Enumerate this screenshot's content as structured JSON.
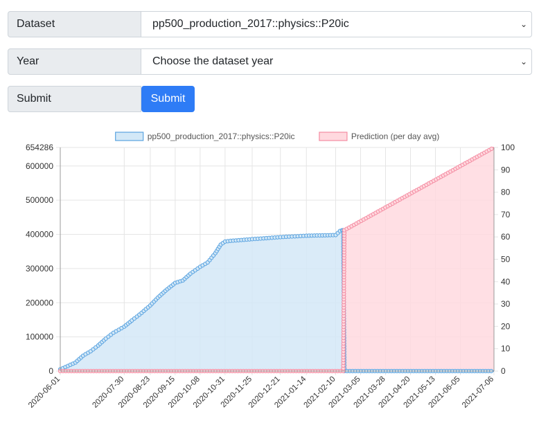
{
  "form": {
    "dataset_label": "Dataset",
    "dataset_value": "pp500_production_2017::physics::P20ic",
    "year_label": "Year",
    "year_value": "Choose the dataset year",
    "submit_label": "Submit",
    "submit_button": "Submit"
  },
  "colors": {
    "series_fill": "#d3e8f7",
    "series_line": "#5aa3e0",
    "prediction_fill": "#ffd9df",
    "prediction_line": "#f48ca2"
  },
  "chart_data": {
    "type": "line",
    "legend_position": "top",
    "grid": true,
    "series": [
      {
        "name": "pp500_production_2017::physics::P20ic",
        "axis": "left",
        "x": [
          "2020-06-01",
          "2020-06-08",
          "2020-06-15",
          "2020-06-22",
          "2020-06-29",
          "2020-07-06",
          "2020-07-13",
          "2020-07-20",
          "2020-07-30",
          "2020-08-06",
          "2020-08-13",
          "2020-08-23",
          "2020-08-30",
          "2020-09-06",
          "2020-09-15",
          "2020-09-22",
          "2020-09-29",
          "2020-10-08",
          "2020-10-15",
          "2020-10-22",
          "2020-10-27",
          "2020-10-31",
          "2020-11-05",
          "2020-11-25",
          "2020-12-21",
          "2021-01-14",
          "2021-02-10",
          "2021-02-14",
          "2021-02-16",
          "2021-02-17",
          "2021-02-18",
          "2021-07-06"
        ],
        "values": [
          5000,
          15000,
          25000,
          45000,
          58000,
          75000,
          95000,
          112000,
          130000,
          148000,
          165000,
          192000,
          215000,
          235000,
          258000,
          265000,
          285000,
          305000,
          318000,
          345000,
          370000,
          379000,
          381000,
          386000,
          392000,
          396000,
          398000,
          410000,
          412000,
          412000,
          0,
          0
        ]
      },
      {
        "name": "Prediction (per day avg)",
        "axis": "right",
        "x": [
          "2020-06-01",
          "2021-02-17",
          "2021-02-18",
          "2021-07-06"
        ],
        "values": [
          0,
          0,
          63,
          100
        ]
      }
    ],
    "x_range": [
      "2020-06-01",
      "2021-07-06"
    ],
    "x_ticks": [
      "2020-06-01",
      "2020-07-30",
      "2020-08-23",
      "2020-09-15",
      "2020-10-08",
      "2020-10-31",
      "2020-11-25",
      "2020-12-21",
      "2021-01-14",
      "2021-02-10",
      "2021-03-05",
      "2021-03-28",
      "2021-04-20",
      "2021-05-13",
      "2021-06-05",
      "2021-07-06"
    ],
    "y_left": {
      "range": [
        0,
        654286
      ],
      "ticks": [
        "0",
        "100000",
        "200000",
        "300000",
        "400000",
        "500000",
        "600000",
        "654286"
      ]
    },
    "y_right": {
      "range": [
        0,
        100
      ],
      "ticks": [
        "0",
        "10",
        "20",
        "30",
        "40",
        "50",
        "60",
        "70",
        "80",
        "90",
        "100"
      ]
    }
  }
}
